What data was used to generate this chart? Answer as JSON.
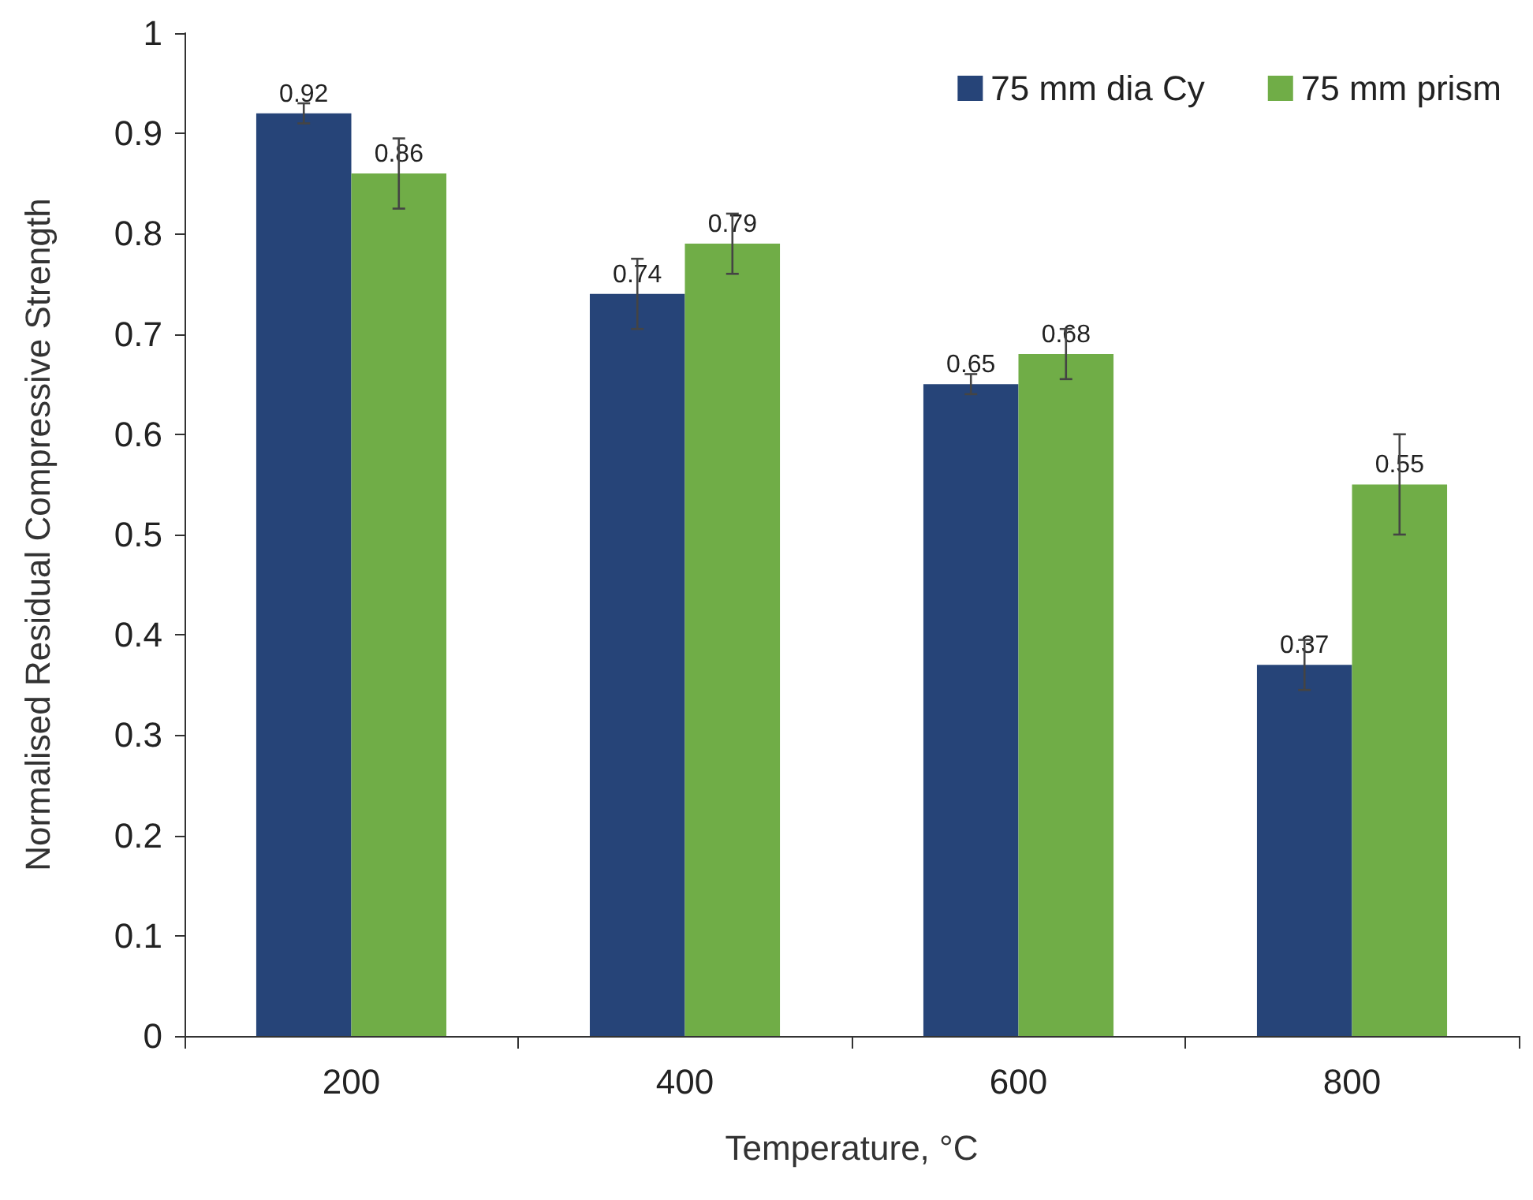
{
  "chart_data": {
    "type": "bar",
    "xlabel": "Temperature, °C",
    "ylabel": "Normalised Residual Compressive Strength",
    "categories": [
      "200",
      "400",
      "600",
      "800"
    ],
    "series": [
      {
        "name": "75 mm dia Cy",
        "color": "#264478",
        "values": [
          0.92,
          0.74,
          0.65,
          0.37
        ],
        "errors": [
          0.01,
          0.035,
          0.01,
          0.025
        ]
      },
      {
        "name": "75 mm prism",
        "color": "#70ad47",
        "values": [
          0.86,
          0.79,
          0.68,
          0.55
        ],
        "errors": [
          0.035,
          0.03,
          0.025,
          0.05
        ]
      }
    ],
    "ylim": [
      0,
      1
    ],
    "yticks": [
      0,
      0.1,
      0.2,
      0.3,
      0.4,
      0.5,
      0.6,
      0.7,
      0.8,
      0.9,
      1
    ],
    "grid": false,
    "legend": "top right",
    "data_labels": true
  }
}
